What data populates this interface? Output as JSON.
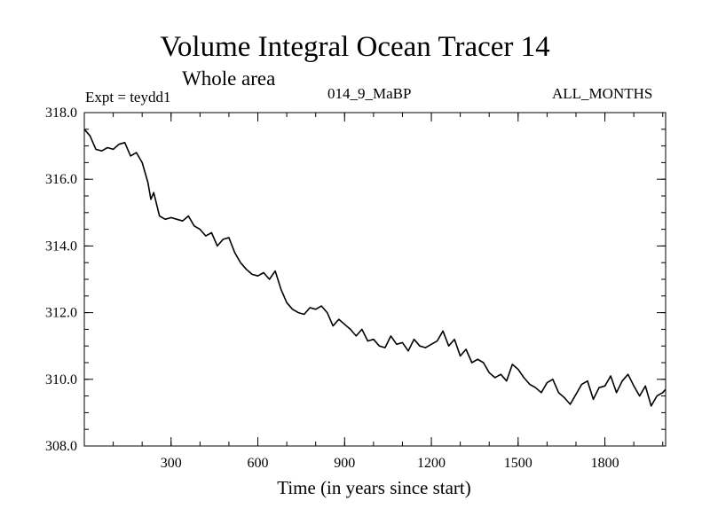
{
  "chart_data": {
    "type": "line",
    "title": "Volume Integral Ocean Tracer 14",
    "subtitle": "Whole area",
    "expt_label": "Expt = teydd1",
    "run_label": "014_9_MaBP",
    "months_label": "ALL_MONTHS",
    "xlabel": "Time (in years since start)",
    "ylabel": "",
    "xlim": [
      0,
      2010
    ],
    "ylim": [
      308.0,
      318.0
    ],
    "x_ticks": [
      300,
      600,
      900,
      1200,
      1500,
      1800
    ],
    "x_tick_labels": [
      "300",
      "600",
      "900",
      "1200",
      "1500",
      "1800"
    ],
    "x_minor_step": 100,
    "y_ticks": [
      308.0,
      310.0,
      312.0,
      314.0,
      316.0,
      318.0
    ],
    "y_tick_labels": [
      "308.0",
      "310.0",
      "312.0",
      "314.0",
      "316.0",
      "318.0"
    ],
    "y_minor_step": 0.5,
    "grid": false,
    "series": [
      {
        "name": "Volume Integral Ocean Tracer 14",
        "color": "#000000",
        "x": [
          0,
          20,
          40,
          60,
          80,
          100,
          120,
          140,
          160,
          180,
          200,
          220,
          230,
          240,
          260,
          280,
          300,
          320,
          340,
          360,
          380,
          400,
          420,
          440,
          460,
          480,
          500,
          520,
          540,
          560,
          580,
          600,
          620,
          640,
          660,
          680,
          700,
          720,
          740,
          760,
          780,
          800,
          820,
          840,
          860,
          880,
          900,
          920,
          940,
          960,
          980,
          1000,
          1020,
          1040,
          1060,
          1080,
          1100,
          1120,
          1140,
          1160,
          1180,
          1200,
          1220,
          1240,
          1260,
          1280,
          1300,
          1320,
          1340,
          1360,
          1380,
          1400,
          1420,
          1440,
          1460,
          1480,
          1500,
          1520,
          1540,
          1560,
          1580,
          1600,
          1620,
          1640,
          1660,
          1680,
          1700,
          1720,
          1740,
          1760,
          1780,
          1800,
          1820,
          1840,
          1860,
          1880,
          1900,
          1920,
          1940,
          1960,
          1980,
          2000,
          2010
        ],
        "values": [
          317.5,
          317.3,
          316.9,
          316.85,
          316.95,
          316.9,
          317.05,
          317.1,
          316.7,
          316.8,
          316.5,
          315.9,
          315.4,
          315.6,
          314.9,
          314.8,
          314.85,
          314.8,
          314.75,
          314.9,
          314.6,
          314.5,
          314.3,
          314.4,
          314.0,
          314.2,
          314.25,
          313.8,
          313.5,
          313.3,
          313.15,
          313.1,
          313.2,
          313.0,
          313.25,
          312.7,
          312.3,
          312.1,
          312.0,
          311.95,
          312.15,
          312.1,
          312.2,
          312.0,
          311.6,
          311.8,
          311.65,
          311.5,
          311.3,
          311.5,
          311.15,
          311.2,
          311.0,
          310.95,
          311.3,
          311.05,
          311.1,
          310.85,
          311.2,
          311.0,
          310.95,
          311.05,
          311.15,
          311.45,
          311.0,
          311.2,
          310.7,
          310.9,
          310.5,
          310.6,
          310.5,
          310.2,
          310.05,
          310.15,
          309.95,
          310.45,
          310.3,
          310.05,
          309.85,
          309.75,
          309.6,
          309.9,
          310.0,
          309.6,
          309.45,
          309.25,
          309.55,
          309.85,
          309.95,
          309.4,
          309.75,
          309.8,
          310.1,
          309.6,
          309.95,
          310.15,
          309.8,
          309.5,
          309.8,
          309.2,
          309.5,
          309.6,
          309.7
        ]
      }
    ]
  }
}
